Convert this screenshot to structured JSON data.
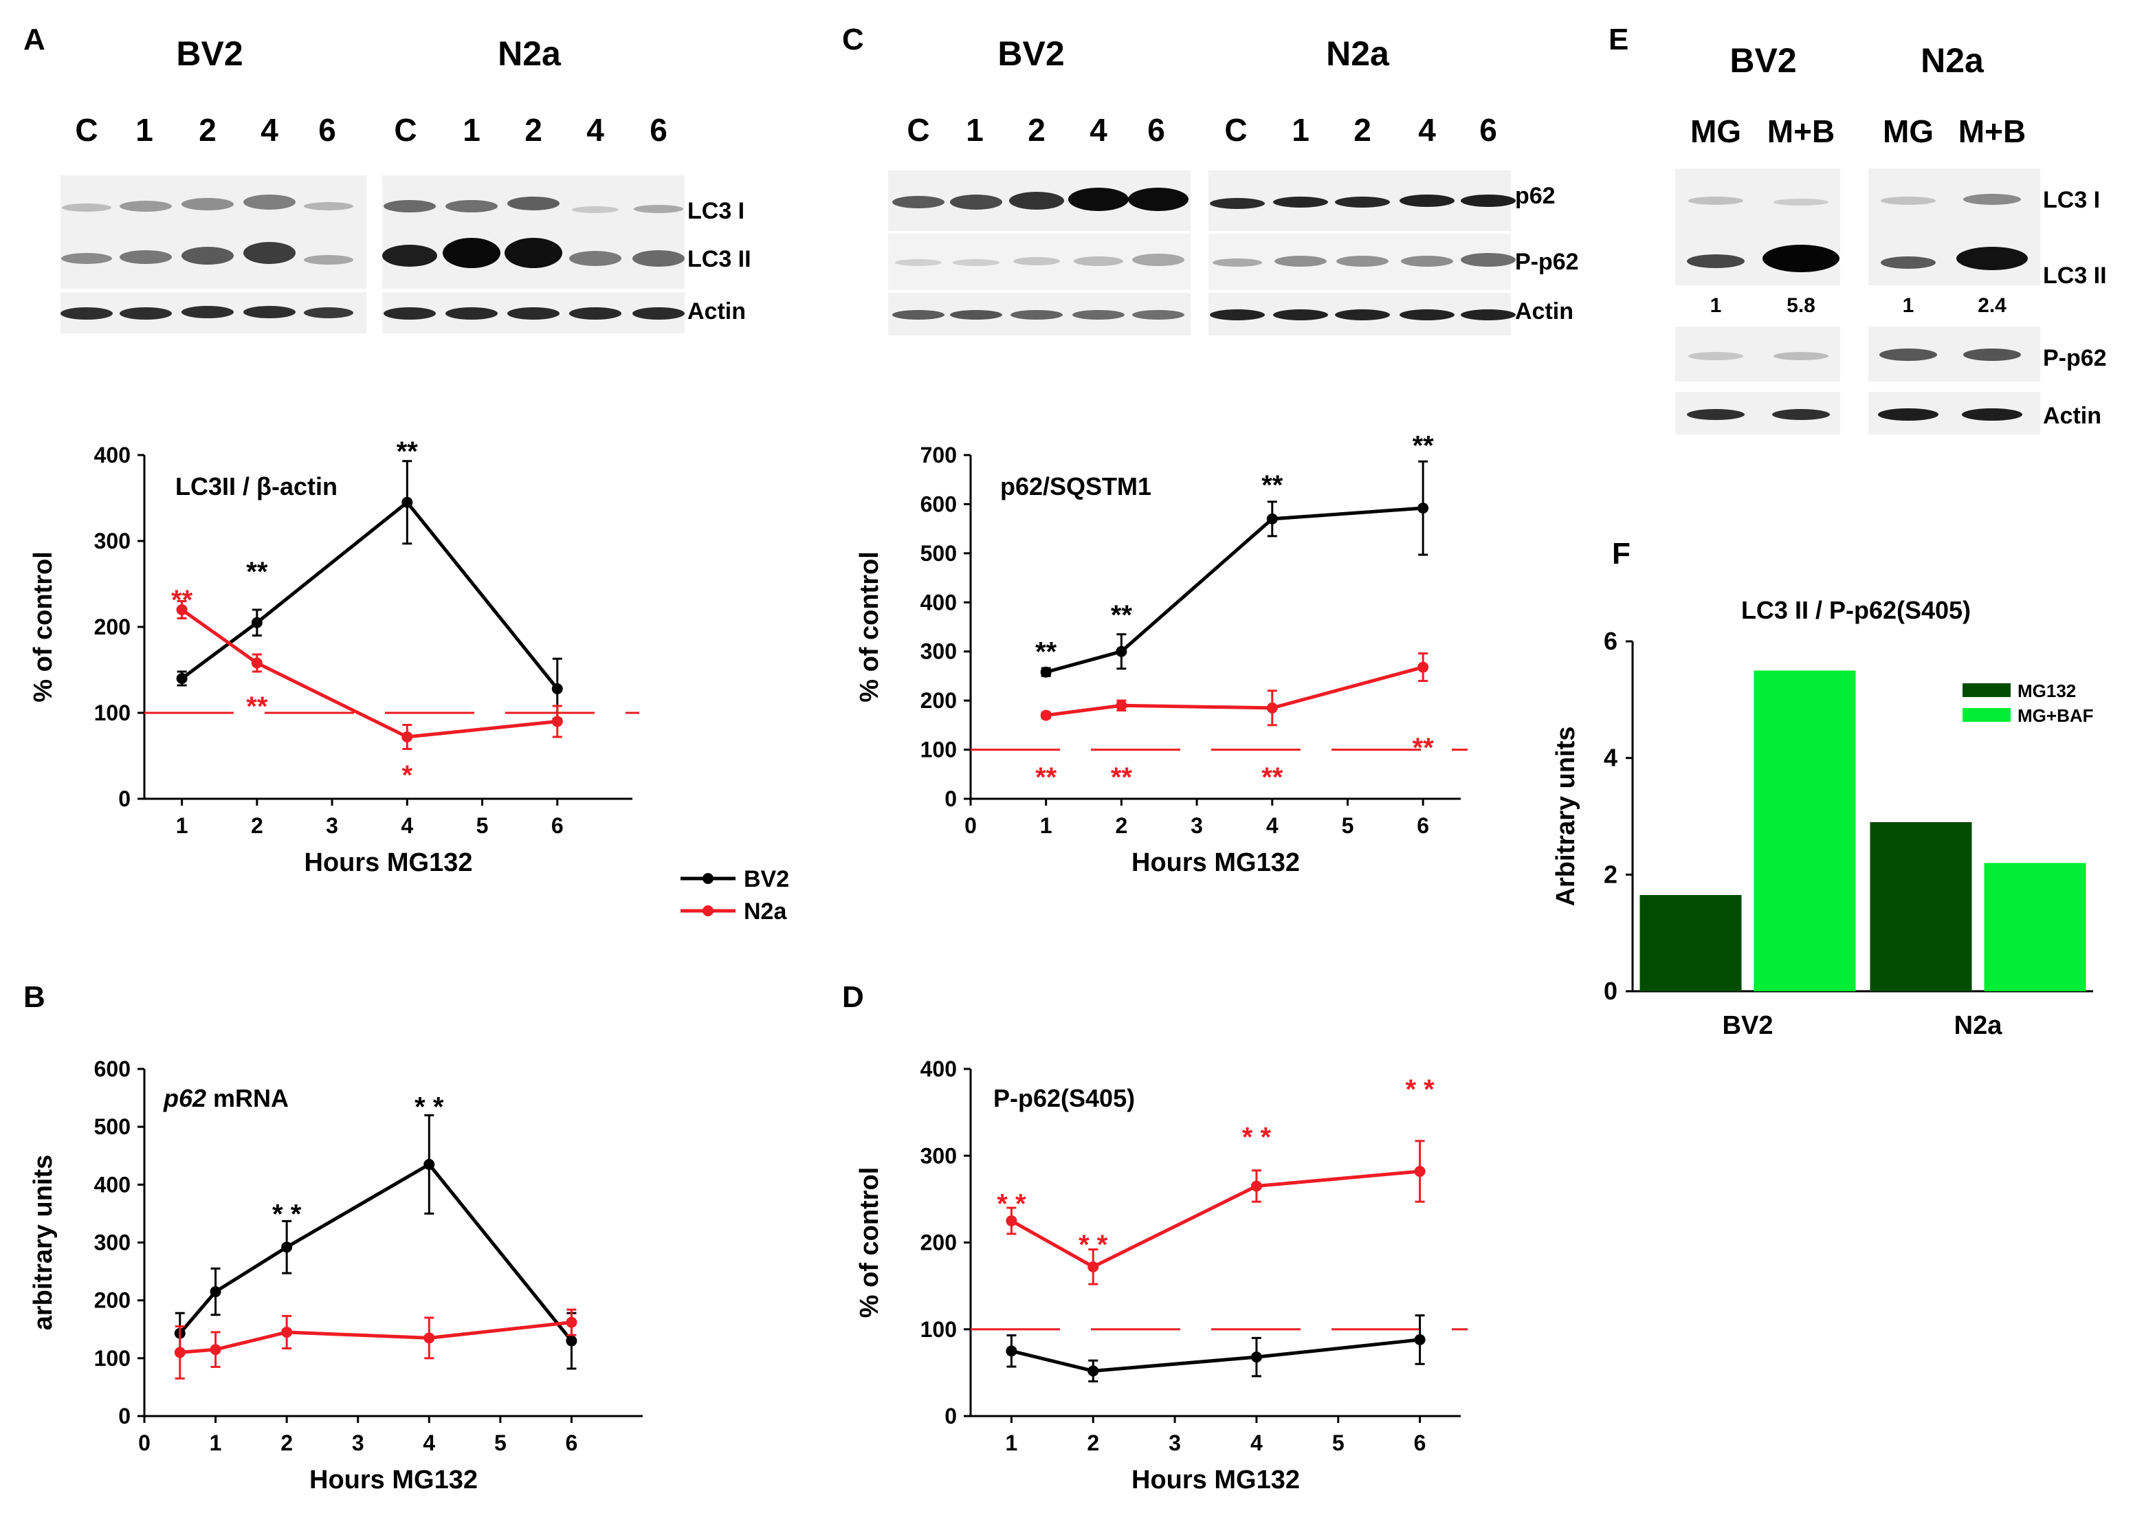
{
  "colors": {
    "bv2": "#000000",
    "n2a": "#ee1c24",
    "mg132": "#004d00",
    "mgbaf": "#00ee33",
    "blot_bg": "#f1f1f1",
    "axis": "#000000"
  },
  "panels": {
    "A": "A",
    "B": "B",
    "C": "C",
    "D": "D",
    "E": "E",
    "F": "F"
  },
  "blots": {
    "A": {
      "cell_bv2": "BV2",
      "cell_n2a": "N2a",
      "lanes_bv2": [
        "C",
        "1",
        "2",
        "4",
        "6"
      ],
      "lanes_n2a": [
        "C",
        "1",
        "2",
        "4",
        "6"
      ],
      "bands": [
        "LC3 I",
        "LC3 II",
        "Actin"
      ]
    },
    "C": {
      "cell_bv2": "BV2",
      "cell_n2a": "N2a",
      "lanes_bv2": [
        "C",
        "1",
        "2",
        "4",
        "6"
      ],
      "lanes_n2a": [
        "C",
        "1",
        "2",
        "4",
        "6"
      ],
      "bands": [
        "p62",
        "P-p62",
        "Actin"
      ]
    },
    "E": {
      "cell_bv2": "BV2",
      "cell_n2a": "N2a",
      "lanes_bv2": [
        "MG",
        "M+B"
      ],
      "lanes_n2a": [
        "MG",
        "M+B"
      ],
      "bands": [
        "LC3 I",
        "LC3 II",
        "P-p62",
        "Actin"
      ],
      "quant_bv2": [
        "1",
        "5.8"
      ],
      "quant_n2a": [
        "1",
        "2.4"
      ]
    }
  },
  "legend": {
    "bv2": "BV2",
    "n2a": "N2a"
  },
  "chart_data": [
    {
      "id": "A",
      "type": "line",
      "title": "LC3II / β-actin",
      "xlabel": "Hours MG132",
      "ylabel": "% of control",
      "xlim": [
        0.5,
        7.0
      ],
      "ylim": [
        0,
        400
      ],
      "xticks": [
        1,
        2,
        3,
        4,
        5,
        6
      ],
      "yticks": [
        0,
        100,
        200,
        300,
        400
      ],
      "reference_line": 100,
      "series": [
        {
          "name": "BV2",
          "x": [
            1,
            2,
            4,
            6
          ],
          "y": [
            140,
            205,
            345,
            128
          ],
          "err": [
            8,
            15,
            48,
            35
          ],
          "stars": [
            {
              "x": 2,
              "y": 265,
              "text": "**"
            },
            {
              "x": 4,
              "y": 405,
              "text": "**"
            }
          ]
        },
        {
          "name": "N2a",
          "x": [
            1,
            2,
            4,
            6
          ],
          "y": [
            220,
            158,
            72,
            90
          ],
          "err": [
            10,
            10,
            14,
            18
          ],
          "stars": [
            {
              "x": 1,
              "y": 232,
              "text": "**"
            },
            {
              "x": 2,
              "y": 108,
              "text": "**"
            },
            {
              "x": 4,
              "y": 28,
              "text": "*"
            }
          ]
        }
      ]
    },
    {
      "id": "B",
      "type": "line",
      "title": "p62 mRNA",
      "title_italic": "p62",
      "title_rest": " mRNA",
      "xlabel": "Hours MG132",
      "ylabel": "arbitrary units",
      "xlim": [
        0,
        7
      ],
      "ylim": [
        0,
        600
      ],
      "xticks": [
        0,
        1,
        2,
        3,
        4,
        5,
        6
      ],
      "yticks": [
        0,
        100,
        200,
        300,
        400,
        500,
        600
      ],
      "reference_line": null,
      "series": [
        {
          "name": "BV2",
          "x": [
            0.5,
            1,
            2,
            4,
            6
          ],
          "y": [
            143,
            215,
            292,
            435,
            130
          ],
          "err": [
            35,
            40,
            45,
            85,
            48
          ],
          "stars": [
            {
              "x": 2,
              "y": 350,
              "text": "* *"
            },
            {
              "x": 4,
              "y": 535,
              "text": "* *"
            }
          ]
        },
        {
          "name": "N2a",
          "x": [
            0.5,
            1,
            2,
            4,
            6
          ],
          "y": [
            110,
            115,
            145,
            135,
            162
          ],
          "err": [
            45,
            30,
            28,
            35,
            22
          ],
          "stars": []
        }
      ]
    },
    {
      "id": "C",
      "type": "line",
      "title": "p62/SQSTM1",
      "xlabel": "Hours MG132",
      "ylabel": "% of control",
      "xlim": [
        0,
        6.5
      ],
      "ylim": [
        0,
        700
      ],
      "xticks": [
        0,
        1,
        2,
        3,
        4,
        5,
        6
      ],
      "yticks": [
        0,
        100,
        200,
        300,
        400,
        500,
        600,
        700
      ],
      "reference_line": 100,
      "series": [
        {
          "name": "BV2",
          "x": [
            1,
            2,
            4,
            6
          ],
          "y": [
            258,
            300,
            570,
            592
          ],
          "err": [
            8,
            35,
            35,
            95
          ],
          "stars": [
            {
              "x": 1,
              "y": 300,
              "text": "**"
            },
            {
              "x": 2,
              "y": 375,
              "text": "**"
            },
            {
              "x": 4,
              "y": 640,
              "text": "**"
            },
            {
              "x": 6,
              "y": 720,
              "text": "**"
            }
          ]
        },
        {
          "name": "N2a",
          "x": [
            1,
            2,
            4,
            6
          ],
          "y": [
            170,
            190,
            185,
            268
          ],
          "err": [
            6,
            10,
            35,
            28
          ],
          "stars": [
            {
              "x": 1,
              "y": 45,
              "text": "**"
            },
            {
              "x": 2,
              "y": 45,
              "text": "**"
            },
            {
              "x": 4,
              "y": 45,
              "text": "**"
            },
            {
              "x": 6,
              "y": 105,
              "text": "**"
            }
          ]
        }
      ]
    },
    {
      "id": "D",
      "type": "line",
      "title": "P-p62(S405)",
      "xlabel": "Hours MG132",
      "ylabel": "% of control",
      "xlim": [
        0.5,
        6.5
      ],
      "ylim": [
        0,
        400
      ],
      "xticks": [
        1,
        2,
        3,
        4,
        5,
        6
      ],
      "yticks": [
        0,
        100,
        200,
        300,
        400
      ],
      "reference_line": 100,
      "series": [
        {
          "name": "BV2",
          "x": [
            1,
            2,
            4,
            6
          ],
          "y": [
            75,
            52,
            68,
            88
          ],
          "err": [
            18,
            12,
            22,
            28
          ],
          "stars": []
        },
        {
          "name": "N2a",
          "x": [
            1,
            2,
            4,
            6
          ],
          "y": [
            225,
            172,
            265,
            282
          ],
          "err": [
            15,
            20,
            18,
            35
          ],
          "stars": [
            {
              "x": 1,
              "y": 245,
              "text": "* *"
            },
            {
              "x": 2,
              "y": 198,
              "text": "* *"
            },
            {
              "x": 4,
              "y": 322,
              "text": "* *"
            },
            {
              "x": 6,
              "y": 377,
              "text": "* *"
            }
          ]
        }
      ]
    },
    {
      "id": "F",
      "type": "bar",
      "title": "LC3 II / P-p62(S405)",
      "xlabel": "",
      "ylabel": "Arbitrary units",
      "categories": [
        "BV2",
        "N2a"
      ],
      "ylim": [
        0,
        6
      ],
      "yticks": [
        0,
        2,
        4,
        6
      ],
      "series": [
        {
          "name": "MG132",
          "values": [
            1.65,
            2.9
          ]
        },
        {
          "name": "MG+BAF",
          "values": [
            5.5,
            2.2
          ]
        }
      ]
    }
  ]
}
